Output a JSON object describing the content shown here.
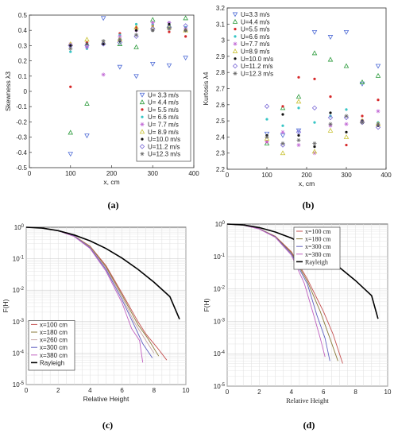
{
  "chart_data": [
    {
      "type": "scatter",
      "panel_label": "(a)",
      "xlabel": "x, cm",
      "ylabel": "Skewness  λ3",
      "xlim": [
        0,
        400
      ],
      "ylim": [
        -0.5,
        0.5
      ],
      "xticks": [
        0,
        100,
        200,
        300,
        400
      ],
      "yticks": [
        -0.5,
        -0.4,
        -0.3,
        -0.2,
        -0.1,
        0,
        0.1,
        0.2,
        0.3,
        0.4,
        0.5
      ],
      "grid": false,
      "legend_position": "bottom-right",
      "x": [
        100,
        140,
        180,
        220,
        260,
        300,
        340,
        380
      ],
      "series": [
        {
          "name": "U= 3.3 m/s",
          "color": "#4f6cd6",
          "marker": "tri-down",
          "values": [
            -0.41,
            -0.29,
            0.48,
            0.16,
            0.1,
            0.18,
            0.17,
            0.22
          ]
        },
        {
          "name": "U= 4.4 m/s",
          "color": "#2a9a3a",
          "marker": "tri-up",
          "values": [
            -0.27,
            -0.08,
            0.32,
            0.31,
            0.29,
            0.47,
            0.43,
            0.48
          ]
        },
        {
          "name": "U= 5.5 m/s",
          "color": "#d62728",
          "marker": "circle",
          "values": [
            0.03,
            0.32,
            0.32,
            0.38,
            0.42,
            0.43,
            0.39,
            0.36
          ]
        },
        {
          "name": "U= 6.6 m/s",
          "color": "#36c5c5",
          "marker": "circle",
          "values": [
            0.26,
            0.28,
            0.32,
            0.37,
            0.44,
            0.44,
            0.45,
            0.42
          ]
        },
        {
          "name": "U= 7.7 m/s",
          "color": "#c26bd6",
          "marker": "star",
          "values": [
            0.31,
            0.29,
            0.11,
            0.36,
            0.4,
            0.45,
            0.45,
            0.41
          ]
        },
        {
          "name": "U= 8.9 m/s",
          "color": "#c9c233",
          "marker": "tri-up",
          "values": [
            0.31,
            0.34,
            0.32,
            0.34,
            0.42,
            0.42,
            0.42,
            0.4
          ]
        },
        {
          "name": "U=10.0 m/s",
          "color": "#111111",
          "marker": "circle",
          "values": [
            0.3,
            0.31,
            0.31,
            0.33,
            0.4,
            0.4,
            0.44,
            0.4
          ]
        },
        {
          "name": "U=11.2 m/s",
          "color": "#7a68d6",
          "marker": "diamond",
          "values": [
            0.3,
            0.3,
            0.31,
            0.32,
            0.36,
            0.41,
            0.42,
            0.43
          ]
        },
        {
          "name": "U=12.3 m/s",
          "color": "#6b6b6b",
          "marker": "star",
          "values": [
            0.28,
            0.31,
            0.33,
            0.34,
            0.37,
            0.4,
            0.41,
            0.4
          ]
        }
      ]
    },
    {
      "type": "scatter",
      "panel_label": "(b)",
      "xlabel": "x, cm",
      "ylabel": "Kurtosis  λ4",
      "xlim": [
        0,
        400
      ],
      "ylim": [
        2.2,
        3.2
      ],
      "xticks": [
        0,
        100,
        200,
        300,
        400
      ],
      "yticks": [
        2.2,
        2.3,
        2.4,
        2.5,
        2.6,
        2.7,
        2.8,
        2.9,
        3.0,
        3.1,
        3.2
      ],
      "grid": false,
      "legend_position": "top-left",
      "x": [
        100,
        140,
        180,
        220,
        260,
        300,
        340,
        380
      ],
      "series": [
        {
          "name": "U=3.3 m/s",
          "color": "#4f6cd6",
          "marker": "tri-down",
          "values": [
            2.42,
            2.41,
            2.44,
            3.05,
            3.02,
            3.05,
            2.73,
            2.84
          ]
        },
        {
          "name": "U=4.4 m/s",
          "color": "#2a9a3a",
          "marker": "tri-up",
          "values": [
            2.36,
            2.58,
            2.65,
            2.92,
            2.88,
            2.84,
            2.74,
            2.78
          ]
        },
        {
          "name": "U=5.5 m/s",
          "color": "#d62728",
          "marker": "circle",
          "values": [
            2.37,
            2.59,
            2.77,
            2.76,
            2.65,
            2.35,
            2.53,
            2.63
          ]
        },
        {
          "name": "U=6.6 m/s",
          "color": "#36c5c5",
          "marker": "circle",
          "values": [
            2.51,
            2.47,
            2.58,
            2.49,
            2.53,
            2.57,
            2.5,
            2.49
          ]
        },
        {
          "name": "U=7.7 m/s",
          "color": "#c26bd6",
          "marker": "star",
          "values": [
            2.37,
            2.43,
            2.35,
            2.3,
            2.47,
            2.48,
            2.5,
            2.56
          ]
        },
        {
          "name": "U=8.9 m/s",
          "color": "#c9c233",
          "marker": "tri-up",
          "values": [
            2.39,
            2.3,
            2.62,
            2.31,
            2.44,
            2.4,
            2.5,
            2.48
          ]
        },
        {
          "name": "U=10.0 m/s",
          "color": "#111111",
          "marker": "circle",
          "values": [
            2.41,
            2.54,
            2.41,
            2.34,
            2.55,
            2.43,
            2.5,
            2.47
          ]
        },
        {
          "name": "U=11.2 m/s",
          "color": "#7a68d6",
          "marker": "diamond",
          "values": [
            2.59,
            2.35,
            2.43,
            2.58,
            2.52,
            2.52,
            2.49,
            2.46
          ]
        },
        {
          "name": "U=12.3 m/s",
          "color": "#6b6b6b",
          "marker": "star",
          "values": [
            2.4,
            2.36,
            2.38,
            2.36,
            2.48,
            2.53,
            2.49,
            2.48
          ]
        }
      ]
    },
    {
      "type": "line",
      "panel_label": "(c)",
      "xlabel": "Relative Height",
      "ylabel": "F(H)",
      "xlim": [
        0,
        10
      ],
      "ylim": [
        1e-05,
        1
      ],
      "yscale": "log",
      "xticks": [
        0,
        2,
        4,
        6,
        8,
        10
      ],
      "ytick_labels": [
        "10^0",
        "10^-1",
        "10^-2",
        "10^-3",
        "10^-4",
        "10^-5"
      ],
      "grid": true,
      "legend_position": "bottom-left",
      "series": [
        {
          "name": "x=100 cm",
          "color": "#c45050",
          "x": [
            0,
            1,
            2,
            3,
            4,
            5,
            6,
            7,
            7.5,
            8.2,
            8.8
          ],
          "values": [
            1,
            0.95,
            0.78,
            0.53,
            0.25,
            0.06,
            0.008,
            0.001,
            0.0004,
            0.00015,
            6e-05
          ]
        },
        {
          "name": "x=180 cm",
          "color": "#8a7a3a",
          "x": [
            0,
            1,
            2,
            3,
            4,
            5,
            6,
            7,
            7.6,
            8.3
          ],
          "values": [
            1,
            0.95,
            0.78,
            0.53,
            0.24,
            0.055,
            0.007,
            0.0008,
            0.0003,
            8e-05
          ]
        },
        {
          "name": "x=260 cm",
          "color": "#c8a8a8",
          "x": [
            0,
            1,
            2,
            3,
            4,
            5,
            6,
            6.8,
            7.4,
            8.0
          ],
          "values": [
            1,
            0.95,
            0.77,
            0.52,
            0.23,
            0.05,
            0.006,
            0.0009,
            0.0003,
            0.0001
          ]
        },
        {
          "name": "x=300 cm",
          "color": "#6060c0",
          "x": [
            0,
            1,
            2,
            3,
            4,
            5,
            6,
            6.8,
            7.3,
            7.9
          ],
          "values": [
            1,
            0.95,
            0.77,
            0.52,
            0.22,
            0.045,
            0.005,
            0.0007,
            0.0002,
            7e-05
          ]
        },
        {
          "name": "x=380 cm",
          "color": "#c060c0",
          "x": [
            0,
            1,
            2,
            3,
            4,
            5,
            6,
            6.6,
            7.1,
            7.3
          ],
          "values": [
            1,
            0.95,
            0.77,
            0.51,
            0.21,
            0.04,
            0.004,
            0.0006,
            0.00025,
            5e-05
          ]
        },
        {
          "name": "Rayleigh",
          "color": "#000000",
          "x": [
            0,
            1,
            2,
            3,
            4,
            5,
            6,
            7,
            8,
            9,
            9.6
          ],
          "values": [
            1,
            0.94,
            0.78,
            0.57,
            0.37,
            0.21,
            0.105,
            0.046,
            0.018,
            0.0062,
            0.0012
          ]
        }
      ]
    },
    {
      "type": "line",
      "panel_label": "(d)",
      "xlabel": "Relative Height",
      "ylabel": "F(H)",
      "xlim": [
        0,
        10
      ],
      "ylim": [
        1e-05,
        1
      ],
      "yscale": "log",
      "xticks": [
        0,
        2,
        4,
        6,
        8,
        10
      ],
      "ytick_labels": [
        "10^0",
        "10^-1",
        "10^-2",
        "10^-3",
        "10^-4",
        "10^-5"
      ],
      "grid": true,
      "legend_position": "top-right",
      "series": [
        {
          "name": "x=100 cm",
          "color": "#c45050",
          "x": [
            0,
            1,
            2,
            3,
            4,
            5,
            6,
            6.6,
            7.2
          ],
          "values": [
            1,
            0.93,
            0.72,
            0.42,
            0.14,
            0.02,
            0.002,
            0.0004,
            5e-05
          ]
        },
        {
          "name": "x=180 cm",
          "color": "#8a7a3a",
          "x": [
            0,
            1,
            2,
            3,
            4,
            5,
            5.8,
            6.4,
            6.9
          ],
          "values": [
            1,
            0.93,
            0.72,
            0.41,
            0.13,
            0.017,
            0.002,
            0.0003,
            6e-05
          ]
        },
        {
          "name": "x=300 cm",
          "color": "#6060c0",
          "x": [
            0,
            1,
            2,
            3,
            4,
            5,
            5.6,
            6.1,
            6.4
          ],
          "values": [
            1,
            0.93,
            0.71,
            0.4,
            0.12,
            0.014,
            0.0015,
            0.0003,
            6e-05
          ]
        },
        {
          "name": "x=380 cm",
          "color": "#c060c0",
          "x": [
            0,
            1,
            2,
            3,
            4,
            4.8,
            5.4,
            5.8,
            6.1
          ],
          "values": [
            1,
            0.93,
            0.7,
            0.39,
            0.11,
            0.015,
            0.0015,
            0.0003,
            8e-05
          ]
        },
        {
          "name": "Rayleigh",
          "color": "#000000",
          "x": [
            0,
            1,
            2,
            3,
            4,
            5,
            6,
            7,
            8,
            9,
            9.4
          ],
          "values": [
            1,
            0.94,
            0.78,
            0.57,
            0.37,
            0.21,
            0.105,
            0.046,
            0.018,
            0.0062,
            0.0012
          ]
        }
      ]
    }
  ]
}
